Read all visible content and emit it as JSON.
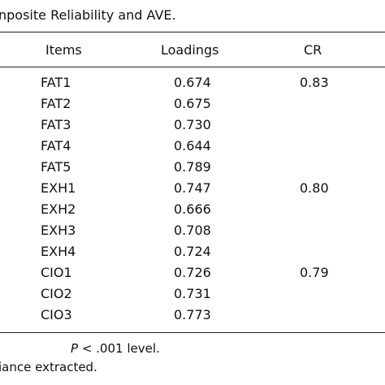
{
  "caption": "nposite Reliability and AVE.",
  "headers": {
    "items": "Items",
    "loadings": "Loadings",
    "cr": "CR"
  },
  "rows": [
    {
      "item": "FAT1",
      "loading": "0.674",
      "cr": "0.83"
    },
    {
      "item": "FAT2",
      "loading": "0.675",
      "cr": ""
    },
    {
      "item": "FAT3",
      "loading": "0.730",
      "cr": ""
    },
    {
      "item": "FAT4",
      "loading": "0.644",
      "cr": ""
    },
    {
      "item": "FAT5",
      "loading": "0.789",
      "cr": ""
    },
    {
      "item": "EXH1",
      "loading": "0.747",
      "cr": "0.80"
    },
    {
      "item": "EXH2",
      "loading": "0.666",
      "cr": ""
    },
    {
      "item": "EXH3",
      "loading": "0.708",
      "cr": ""
    },
    {
      "item": "EXH4",
      "loading": "0.724",
      "cr": ""
    },
    {
      "item": "CIO1",
      "loading": "0.726",
      "cr": "0.79"
    },
    {
      "item": "CIO2",
      "loading": "0.731",
      "cr": ""
    },
    {
      "item": "CIO3",
      "loading": "0.773",
      "cr": ""
    }
  ],
  "notes": {
    "line1_italic": "P",
    "line1_rest": " < .001 level.",
    "line2": "iance extracted."
  }
}
